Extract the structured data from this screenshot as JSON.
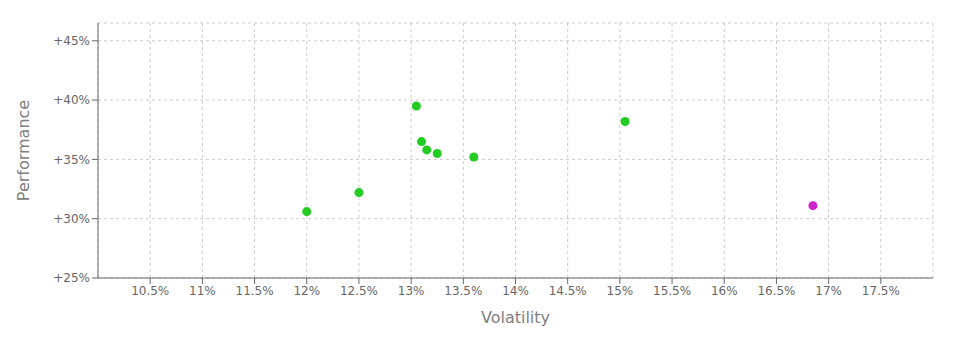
{
  "chart_data": {
    "type": "scatter",
    "xlabel": "Volatility",
    "ylabel": "Performance",
    "xlim": [
      10.0,
      18.0
    ],
    "ylim": [
      25.0,
      46.5
    ],
    "xticks": [
      {
        "value": 10.5,
        "label": "10.5%"
      },
      {
        "value": 11.0,
        "label": "11%"
      },
      {
        "value": 11.5,
        "label": "11.5%"
      },
      {
        "value": 12.0,
        "label": "12%"
      },
      {
        "value": 12.5,
        "label": "12.5%"
      },
      {
        "value": 13.0,
        "label": "13%"
      },
      {
        "value": 13.5,
        "label": "13.5%"
      },
      {
        "value": 14.0,
        "label": "14%"
      },
      {
        "value": 14.5,
        "label": "14.5%"
      },
      {
        "value": 15.0,
        "label": "15%"
      },
      {
        "value": 15.5,
        "label": "15.5%"
      },
      {
        "value": 16.0,
        "label": "16%"
      },
      {
        "value": 16.5,
        "label": "16.5%"
      },
      {
        "value": 17.0,
        "label": "17%"
      },
      {
        "value": 17.5,
        "label": "17.5%"
      }
    ],
    "yticks": [
      {
        "value": 25.0,
        "label": "+25%"
      },
      {
        "value": 30.0,
        "label": "+30%"
      },
      {
        "value": 35.0,
        "label": "+35%"
      },
      {
        "value": 40.0,
        "label": "+40%"
      },
      {
        "value": 45.0,
        "label": "+45%"
      }
    ],
    "grid": true,
    "series": [
      {
        "color": "#22cc22",
        "x": [
          12.0,
          12.5,
          13.05,
          13.1,
          13.15,
          13.25,
          13.6,
          15.05
        ],
        "values": [
          30.6,
          32.2,
          39.5,
          36.5,
          35.8,
          35.5,
          35.2,
          38.2
        ]
      },
      {
        "color": "#cc22cc",
        "x": [
          16.85
        ],
        "values": [
          31.1
        ]
      }
    ]
  }
}
